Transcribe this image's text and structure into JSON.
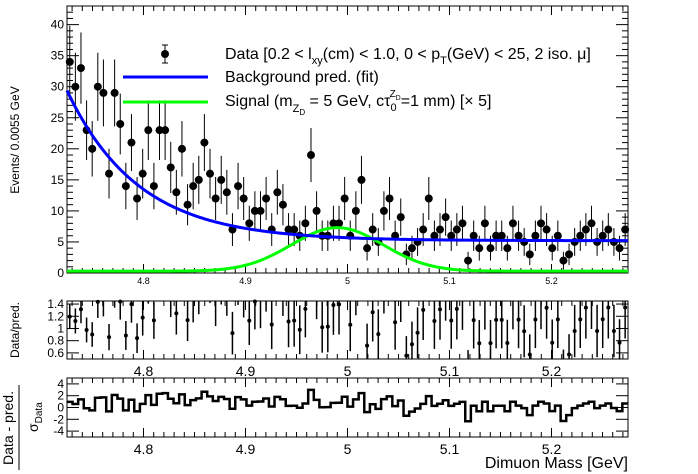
{
  "chart_data": [
    {
      "panel": "main",
      "type": "scatter",
      "ylabel": "Events/ 0.0055 GeV",
      "xlim": [
        4.725,
        5.275
      ],
      "ylim": [
        0,
        43
      ],
      "x_ticks": [
        "4.8",
        "4.9",
        "5",
        "5.1",
        "5.2"
      ],
      "y_ticks": [
        "0",
        "5",
        "10",
        "15",
        "20",
        "25",
        "30",
        "35",
        "40"
      ],
      "legend": {
        "position": "top",
        "data_part1": "Data [0.2 < l",
        "data_sub1": "xy",
        "data_part2": "(cm) < 1.0, 0 < p",
        "data_sub2": "T",
        "data_part3": "(GeV) < 25, 2 iso. μ]",
        "background": "Background pred. (fit)",
        "signal_part1": "Signal (m",
        "signal_sub1": "Z",
        "signal_subsub1": "D",
        "signal_part2": " = 5 GeV, cτ",
        "signal_sub2": "0",
        "signal_sup2": "Z",
        "signal_supsub2": "D",
        "signal_part3": "=1 mm) [× 5]"
      },
      "series": [
        {
          "name": "Data",
          "color": "#000000",
          "x": [
            4.7277,
            4.7332,
            4.7387,
            4.7442,
            4.7497,
            4.7552,
            4.7607,
            4.7662,
            4.7717,
            4.7772,
            4.7827,
            4.7882,
            4.7937,
            4.7992,
            4.8047,
            4.8102,
            4.8157,
            4.8212,
            4.8267,
            4.8322,
            4.8377,
            4.8432,
            4.8487,
            4.8542,
            4.8597,
            4.8652,
            4.8707,
            4.8762,
            4.8817,
            4.8872,
            4.8927,
            4.8982,
            4.9037,
            4.9092,
            4.9147,
            4.9202,
            4.9257,
            4.9312,
            4.9367,
            4.9422,
            4.9477,
            4.9532,
            4.9587,
            4.9642,
            4.9697,
            4.9752,
            4.9807,
            4.9862,
            4.9917,
            4.9972,
            5.0027,
            5.0082,
            5.0137,
            5.0192,
            5.0247,
            5.0302,
            5.0357,
            5.0412,
            5.0467,
            5.0522,
            5.0577,
            5.0632,
            5.0687,
            5.0742,
            5.0797,
            5.0852,
            5.0907,
            5.0962,
            5.1017,
            5.1072,
            5.1127,
            5.1182,
            5.1237,
            5.1292,
            5.1347,
            5.1402,
            5.1457,
            5.1512,
            5.1567,
            5.1622,
            5.1677,
            5.1732,
            5.1787,
            5.1842,
            5.1897,
            5.1952,
            5.2007,
            5.2062,
            5.2117,
            5.2172,
            5.2227,
            5.2282,
            5.2337,
            5.2392,
            5.2447,
            5.2502,
            5.2557,
            5.2612,
            5.2667,
            5.2722
          ],
          "y": [
            34,
            30,
            33,
            23,
            20,
            30,
            29,
            16,
            29,
            24,
            14,
            21,
            12,
            16,
            23,
            14,
            23,
            23,
            17,
            13,
            20,
            11,
            14,
            15,
            21,
            16,
            12,
            15,
            13,
            7,
            14,
            12,
            8,
            10,
            10,
            12,
            7,
            13,
            11,
            7,
            7,
            6,
            8,
            19,
            10,
            6,
            6,
            8,
            8,
            12,
            6,
            10,
            15,
            4,
            7,
            5,
            10,
            12,
            6,
            9,
            3,
            4,
            5,
            7,
            12,
            6,
            7,
            9,
            6,
            7,
            8,
            2,
            6,
            4,
            8,
            4,
            6,
            6,
            4,
            8,
            6,
            5,
            3,
            6,
            8,
            7,
            4,
            6,
            2,
            3,
            5,
            6,
            7,
            8,
            5,
            6,
            7,
            5,
            4,
            7
          ],
          "errors": "Poisson"
        },
        {
          "name": "Background pred. (fit)",
          "color": "#0000ff",
          "shape": "exponential plus constant"
        },
        {
          "name": "Signal (m_ZD = 5 GeV, cτ0=1 mm) [× 5]",
          "color": "#00ff00",
          "shape": "gaussian",
          "mean": 4.99,
          "peak": 7.3,
          "baseline": 0.3
        }
      ]
    },
    {
      "panel": "ratio",
      "type": "scatter",
      "ylabel": "Data/pred.",
      "xlim": [
        4.725,
        5.275
      ],
      "ylim": [
        0.5,
        1.45
      ],
      "x_ticks": [
        "4.8",
        "4.9",
        "5",
        "5.1",
        "5.2"
      ],
      "y_ticks": [
        "0.6",
        "0.8",
        "1",
        "1.2",
        "1.4"
      ],
      "quantity": "data divided by background prediction"
    },
    {
      "panel": "pull",
      "type": "line",
      "ylabel_main": "Data - pred.",
      "ylabel_den": "σ",
      "ylabel_den_sub": "Data",
      "xlabel": "Dimuon Mass [GeV]",
      "xlim": [
        4.725,
        5.275
      ],
      "ylim": [
        -5,
        5
      ],
      "x_ticks": [
        "4.8",
        "4.9",
        "5",
        "5.1",
        "5.2"
      ],
      "y_ticks": [
        "-4",
        "-2",
        "0",
        "2",
        "4"
      ],
      "quantity": "(data - prediction) / σ_data, drawn as a histogram step line"
    }
  ]
}
